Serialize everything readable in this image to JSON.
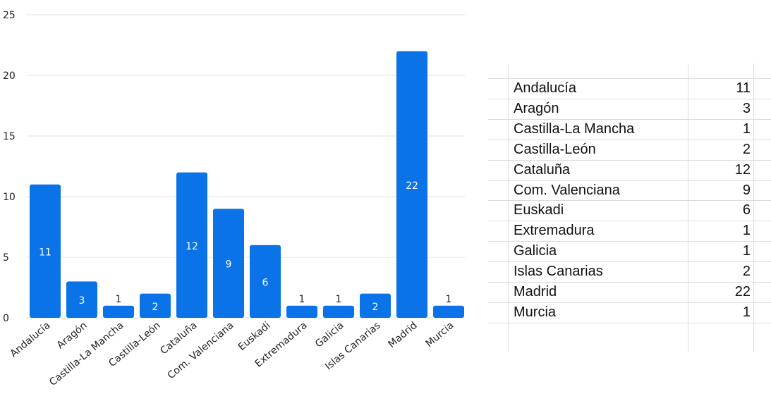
{
  "colors": {
    "bar": "#0a73e8",
    "grid": "#e3e3e3",
    "axis_text": "#222222",
    "inside_label": "#ffffff",
    "outside_label": "#222222"
  },
  "chart_data": {
    "type": "bar",
    "categories": [
      "Andalucía",
      "Aragón",
      "Castilla-La Mancha",
      "Castilla-León",
      "Cataluña",
      "Com. Valenciana",
      "Euskadi",
      "Extremadura",
      "Galicia",
      "Islas Canarias",
      "Madrid",
      "Murcia"
    ],
    "values": [
      11,
      3,
      1,
      2,
      12,
      9,
      6,
      1,
      1,
      2,
      22,
      1
    ],
    "title": "",
    "xlabel": "",
    "ylabel": "",
    "ylim": [
      0,
      25
    ],
    "yticks": [
      "0",
      "5",
      "10",
      "15",
      "20",
      "25"
    ],
    "grid": true,
    "data_labels": true
  },
  "table": {
    "rows": [
      {
        "name": "Andalucía",
        "value": "11"
      },
      {
        "name": "Aragón",
        "value": "3"
      },
      {
        "name": "Castilla-La Mancha",
        "value": "1"
      },
      {
        "name": "Castilla-León",
        "value": "2"
      },
      {
        "name": "Cataluña",
        "value": "12"
      },
      {
        "name": "Com. Valenciana",
        "value": "9"
      },
      {
        "name": "Euskadi",
        "value": "6"
      },
      {
        "name": "Extremadura",
        "value": "1"
      },
      {
        "name": "Galicia",
        "value": "1"
      },
      {
        "name": "Islas Canarias",
        "value": "2"
      },
      {
        "name": "Madrid",
        "value": "22"
      },
      {
        "name": "Murcia",
        "value": "1"
      }
    ]
  }
}
